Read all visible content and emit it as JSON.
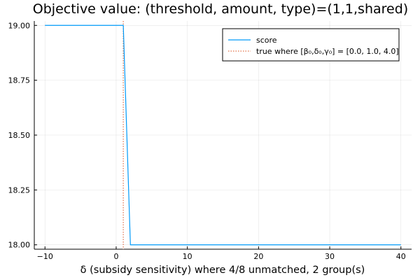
{
  "chart_data": {
    "type": "line",
    "title": "Objective value: (threshold, amount, type)=(1,1,shared)",
    "xlabel": "δ (subsidy sensitivity) where 4/8 unmatched, 2 group(s)",
    "ylabel": "",
    "xlim": [
      -11.5,
      41.5
    ],
    "ylim": [
      17.98,
      19.02
    ],
    "x_ticks": [
      -10,
      0,
      10,
      20,
      30,
      40
    ],
    "x_tick_labels": [
      "−10",
      "0",
      "10",
      "20",
      "30",
      "40"
    ],
    "y_ticks": [
      18.0,
      18.25,
      18.5,
      18.75,
      19.0
    ],
    "y_tick_labels": [
      "18.00",
      "18.25",
      "18.50",
      "18.75",
      "19.00"
    ],
    "grid": true,
    "legend_position": "top-right",
    "series": [
      {
        "name": "score",
        "color": "#009af9",
        "style": "solid",
        "x": [
          -10,
          1,
          2,
          40
        ],
        "y": [
          19.0,
          19.0,
          18.0,
          18.0
        ]
      }
    ],
    "vlines": [
      {
        "name": "true where [β₀,δ₀,γ₀] = [0.0, 1.0, 4.0]",
        "color": "#e26f46",
        "style": "dotted",
        "x": 1.0
      }
    ]
  }
}
